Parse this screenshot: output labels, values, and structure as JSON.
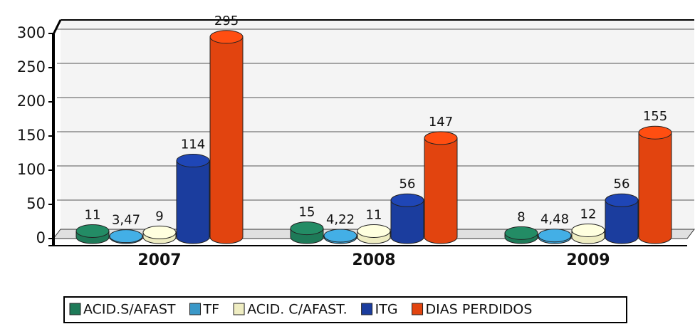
{
  "chart_data": {
    "type": "bar",
    "categories": [
      "2007",
      "2008",
      "2009"
    ],
    "series": [
      {
        "name": "ACID.S/AFAST",
        "color": "#1e7a58",
        "values": [
          11,
          15,
          8
        ]
      },
      {
        "name": "TF",
        "color": "#3a98c8",
        "values": [
          3.47,
          4.22,
          4.48
        ],
        "value_labels": [
          "3,47",
          "4,22",
          "4,48"
        ]
      },
      {
        "name": "ACID. C/AFAST.",
        "color": "#efedc2",
        "values": [
          9,
          11,
          12
        ]
      },
      {
        "name": "ITG",
        "color": "#1b3d9e",
        "values": [
          114,
          56,
          56
        ]
      },
      {
        "name": "DIAS PERDIDOS",
        "color": "#e2440f",
        "values": [
          295,
          147,
          155
        ]
      }
    ],
    "ylim": [
      0,
      300
    ],
    "yticks": [
      0,
      50,
      100,
      150,
      200,
      250,
      300
    ],
    "grid": true,
    "legend": "bottom"
  }
}
